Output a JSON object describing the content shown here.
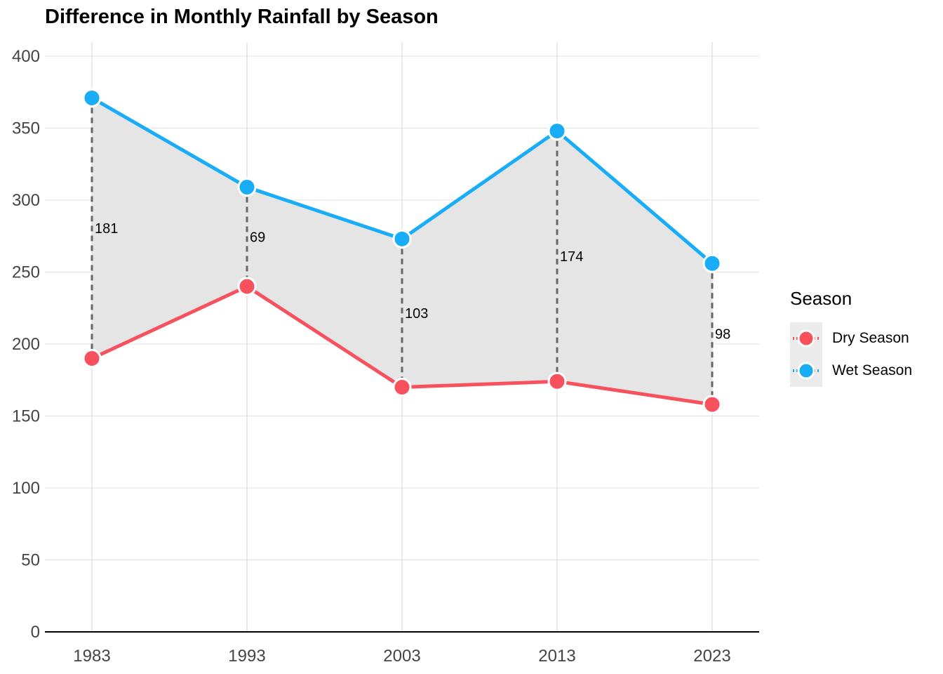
{
  "chart_data": {
    "type": "line",
    "title": "Difference in Monthly Rainfall by Season",
    "xlabel": "",
    "ylabel": "",
    "x": [
      1983,
      1993,
      2003,
      2013,
      2023
    ],
    "x_tick_labels": [
      "1983",
      "1993",
      "2003",
      "2013",
      "2023"
    ],
    "y_tick_labels": [
      "0",
      "50",
      "100",
      "150",
      "200",
      "250",
      "300",
      "350",
      "400"
    ],
    "ylim": [
      0,
      400
    ],
    "grid": true,
    "legend": {
      "title": "Season",
      "position": "right"
    },
    "series": [
      {
        "name": "Dry Season",
        "color": "#F8515E",
        "values": [
          190,
          240,
          170,
          174,
          158
        ]
      },
      {
        "name": "Wet Season",
        "color": "#19ADF7",
        "values": [
          371,
          309,
          273,
          348,
          256
        ]
      }
    ],
    "difference_labels": [
      "181",
      "69",
      "103",
      "174",
      "98"
    ],
    "ribbon_color": "#E5E5E5"
  }
}
